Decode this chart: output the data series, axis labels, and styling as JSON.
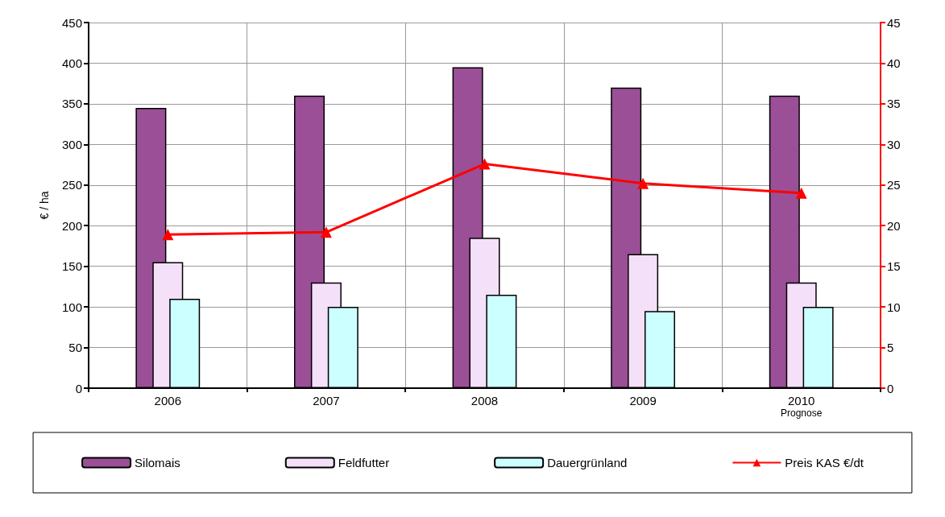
{
  "chart_data": {
    "type": "bar",
    "ylabel": "€ / ha",
    "categories": [
      "2006",
      "2007",
      "2008",
      "2009",
      "2010\nPrognose"
    ],
    "series": [
      {
        "name": "Silomais",
        "color": "#9b4f96",
        "values": [
          345,
          360,
          395,
          370,
          360
        ]
      },
      {
        "name": "Feldfutter",
        "color": "#f4e0f8",
        "values": [
          155,
          130,
          185,
          165,
          130
        ]
      },
      {
        "name": "Dauergrünland",
        "color": "#ccffff",
        "values": [
          110,
          100,
          115,
          95,
          100
        ]
      },
      {
        "name": "Preis KAS €/dt",
        "type": "line",
        "axis": "y2",
        "color": "#ff0000",
        "marker": "triangle",
        "values": [
          18.9,
          19.2,
          27.6,
          25.2,
          24.0
        ]
      }
    ],
    "ylim": [
      0,
      450
    ],
    "yticks": [
      0,
      50,
      100,
      150,
      200,
      250,
      300,
      350,
      400,
      450
    ],
    "y2lim": [
      0,
      45
    ],
    "y2ticks": [
      0,
      5,
      10,
      15,
      20,
      25,
      30,
      35,
      40,
      45
    ],
    "grid": true,
    "legend": "bottom"
  }
}
